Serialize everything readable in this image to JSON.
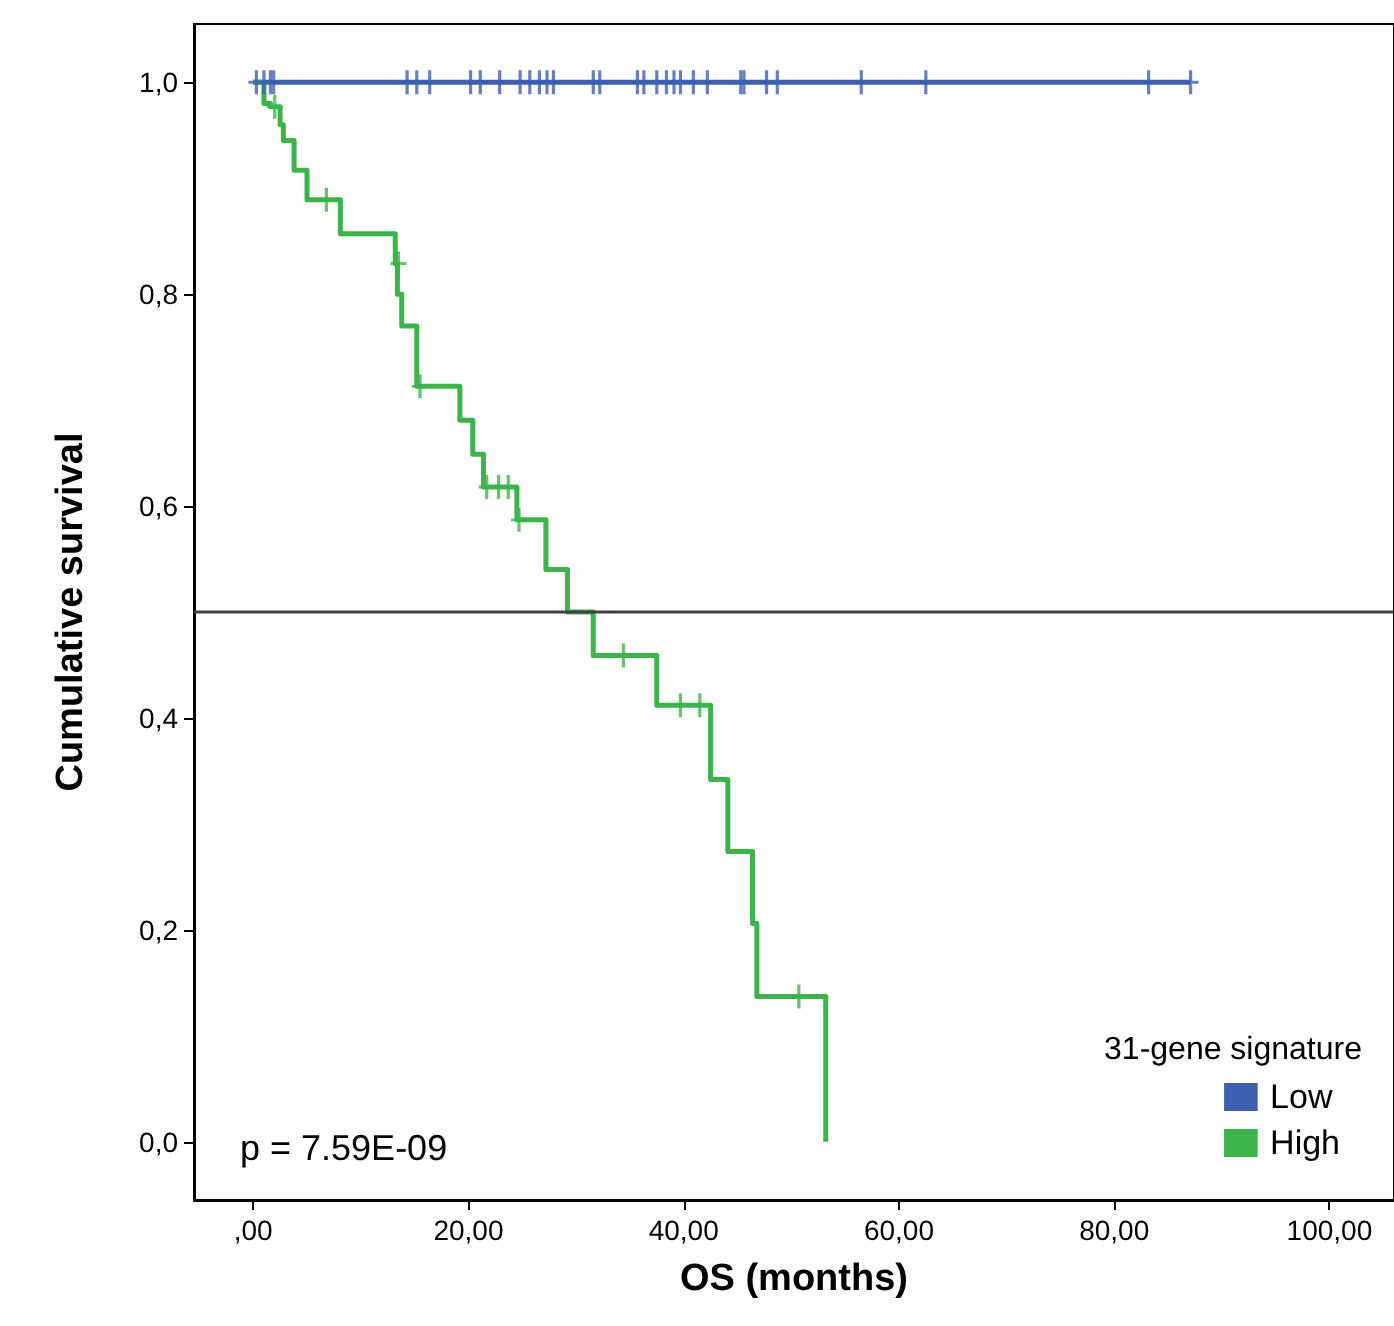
{
  "chart_data": {
    "type": "step",
    "xlabel": "OS (months)",
    "ylabel": "Cumulative survival",
    "legend_title": "31-gene signature",
    "xlim": [
      -5.5,
      106
    ],
    "xticks": [
      {
        "value": 0,
        "label": ",00"
      },
      {
        "value": 20,
        "label": "20,00"
      },
      {
        "value": 40,
        "label": "40,00"
      },
      {
        "value": 60,
        "label": "60,00"
      },
      {
        "value": 80,
        "label": "80,00"
      },
      {
        "value": 100,
        "label": "100,00"
      }
    ],
    "ylim": [
      -0.055,
      1.055
    ],
    "yticks": [
      {
        "value": 0,
        "label": "0,0"
      },
      {
        "value": 0.2,
        "label": "0,2"
      },
      {
        "value": 0.4,
        "label": "0,4"
      },
      {
        "value": 0.6,
        "label": "0,6"
      },
      {
        "value": 0.8,
        "label": "0,8"
      },
      {
        "value": 1,
        "label": "1,0"
      }
    ],
    "grid": false,
    "legend": "bottom right",
    "marker": "none",
    "ref_lines": [
      {
        "axis": "y",
        "value": 0.5,
        "color": "#404040"
      }
    ],
    "annotations": [
      "p = 7.59E-09"
    ],
    "series": [
      {
        "name": "Low",
        "color": "#3f5fb0",
        "x": [
          0,
          87.1
        ],
        "values": [
          1,
          1
        ]
      },
      {
        "name": "High",
        "color": "#3cb44b",
        "x": [
          0,
          1.0,
          1.6,
          2.5,
          2.8,
          3.8,
          5.0,
          8.1,
          13.2,
          13.4,
          13.8,
          15.2,
          19.2,
          20.4,
          21.4,
          24.5,
          27.2,
          29.2,
          31.6,
          37.5,
          42.5,
          44.1,
          46.4,
          46.8,
          53.2
        ],
        "values": [
          1,
          0.98,
          0.977,
          0.96,
          0.945,
          0.917,
          0.889,
          0.857,
          0.829,
          0.8,
          0.77,
          0.713,
          0.681,
          0.649,
          0.618,
          0.587,
          0.54,
          0.5,
          0.459,
          0.412,
          0.342,
          0.274,
          0.206,
          0.137,
          0
        ]
      },
      {
        "type": "scatter",
        "marker": "cross",
        "color": "#3f5fb0",
        "x": [
          0.3,
          1.0,
          1.6,
          1.9,
          14.3,
          15.2,
          16.4,
          20.2,
          21.1,
          22.9,
          24.8,
          25.7,
          26.6,
          27.3,
          27.9,
          31.6,
          32.2,
          35.7,
          36.3,
          37.5,
          38.4,
          39.1,
          39.7,
          40.9,
          42.2,
          45.3,
          45.6,
          47.7,
          48.7,
          56.5,
          62.5,
          83.2,
          87.1
        ],
        "values": [
          1,
          1,
          1,
          1,
          1,
          1,
          1,
          1,
          1,
          1,
          1,
          1,
          1,
          1,
          1,
          1,
          1,
          1,
          1,
          1,
          1,
          1,
          1,
          1,
          1,
          1,
          1,
          1,
          1,
          1,
          1,
          1,
          1
        ]
      },
      {
        "type": "scatter",
        "marker": "cross",
        "color": "#3cb44b",
        "x": [
          2.0,
          6.8,
          13.5,
          15.5,
          21.7,
          22.8,
          23.7,
          24.7,
          34.4,
          39.7,
          41.5,
          50.7
        ],
        "values": [
          0.977,
          0.889,
          0.829,
          0.713,
          0.618,
          0.618,
          0.618,
          0.587,
          0.459,
          0.412,
          0.412,
          0.137
        ]
      }
    ]
  }
}
